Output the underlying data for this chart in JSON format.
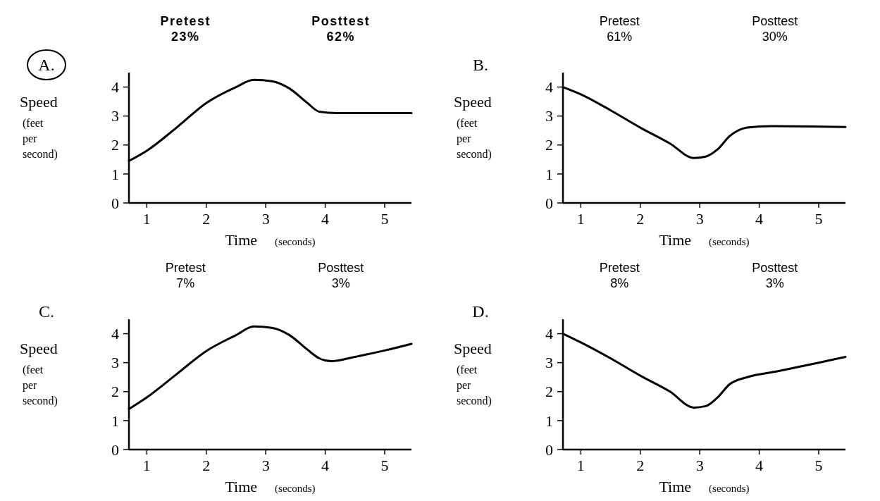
{
  "chart_data": [
    {
      "type": "line",
      "title": "A.",
      "annotations": [
        "Pretest\n23%",
        "Posttest\n62%"
      ],
      "xlabel": "Time (seconds)",
      "ylabel": "Speed (feet per second)",
      "xlim": [
        0.7,
        5.45
      ],
      "xticks": [
        1,
        2,
        3,
        4,
        5
      ],
      "ylim": [
        0,
        4.5
      ],
      "yticks": [
        0,
        1,
        2,
        3,
        4
      ],
      "grid": false,
      "marker": "none",
      "line_style": "solid",
      "series": [
        {
          "color": "#000000",
          "x": [
            0.7,
            1,
            1.5,
            2,
            2.5,
            2.8,
            3.1,
            3.4,
            3.7,
            3.9,
            4.2,
            5.45
          ],
          "values": [
            1.45,
            1.8,
            2.6,
            3.45,
            4.0,
            4.25,
            4.2,
            3.95,
            3.45,
            3.15,
            3.1,
            3.1
          ]
        }
      ]
    },
    {
      "type": "line",
      "title": "B.",
      "annotations": [
        "Pretest\n61%",
        "Posttest\n30%"
      ],
      "xlabel": "Time (seconds)",
      "ylabel": "Speed (feet per second)",
      "xlim": [
        0.7,
        5.45
      ],
      "xticks": [
        1,
        2,
        3,
        4,
        5
      ],
      "ylim": [
        0,
        4.5
      ],
      "yticks": [
        0,
        1,
        2,
        3,
        4
      ],
      "grid": false,
      "marker": "none",
      "line_style": "solid",
      "series": [
        {
          "color": "#000000",
          "x": [
            0.7,
            1,
            1.5,
            2,
            2.5,
            2.9,
            3.1,
            3.3,
            3.5,
            3.8,
            4.2,
            5.45
          ],
          "values": [
            4.0,
            3.75,
            3.2,
            2.6,
            2.05,
            1.55,
            1.6,
            1.85,
            2.3,
            2.6,
            2.65,
            2.62
          ]
        }
      ]
    },
    {
      "type": "line",
      "title": "C.",
      "annotations": [
        "Pretest\n7%",
        "Posttest\n3%"
      ],
      "xlabel": "Time (seconds)",
      "ylabel": "Speed (feet per second)",
      "xlim": [
        0.7,
        5.45
      ],
      "xticks": [
        1,
        2,
        3,
        4,
        5
      ],
      "ylim": [
        0,
        4.5
      ],
      "yticks": [
        0,
        1,
        2,
        3,
        4
      ],
      "grid": false,
      "marker": "none",
      "line_style": "solid",
      "series": [
        {
          "color": "#000000",
          "x": [
            0.7,
            1,
            1.5,
            2,
            2.5,
            2.8,
            3.1,
            3.4,
            3.7,
            3.9,
            4.1,
            4.5,
            5,
            5.45
          ],
          "values": [
            1.4,
            1.8,
            2.6,
            3.4,
            3.95,
            4.25,
            4.2,
            3.95,
            3.45,
            3.15,
            3.05,
            3.2,
            3.42,
            3.65
          ]
        }
      ]
    },
    {
      "type": "line",
      "title": "D.",
      "annotations": [
        "Pretest\n8%",
        "Posttest\n3%"
      ],
      "xlabel": "Time (seconds)",
      "ylabel": "Speed (feet per second)",
      "xlim": [
        0.7,
        5.45
      ],
      "xticks": [
        1,
        2,
        3,
        4,
        5
      ],
      "ylim": [
        0,
        4.5
      ],
      "yticks": [
        0,
        1,
        2,
        3,
        4
      ],
      "grid": false,
      "marker": "none",
      "line_style": "solid",
      "series": [
        {
          "color": "#000000",
          "x": [
            0.7,
            1,
            1.5,
            2,
            2.5,
            2.9,
            3.1,
            3.3,
            3.5,
            3.8,
            4.3,
            5,
            5.45
          ],
          "values": [
            4.0,
            3.7,
            3.15,
            2.55,
            2.0,
            1.45,
            1.5,
            1.8,
            2.25,
            2.5,
            2.7,
            3.0,
            3.2
          ]
        }
      ]
    }
  ]
}
